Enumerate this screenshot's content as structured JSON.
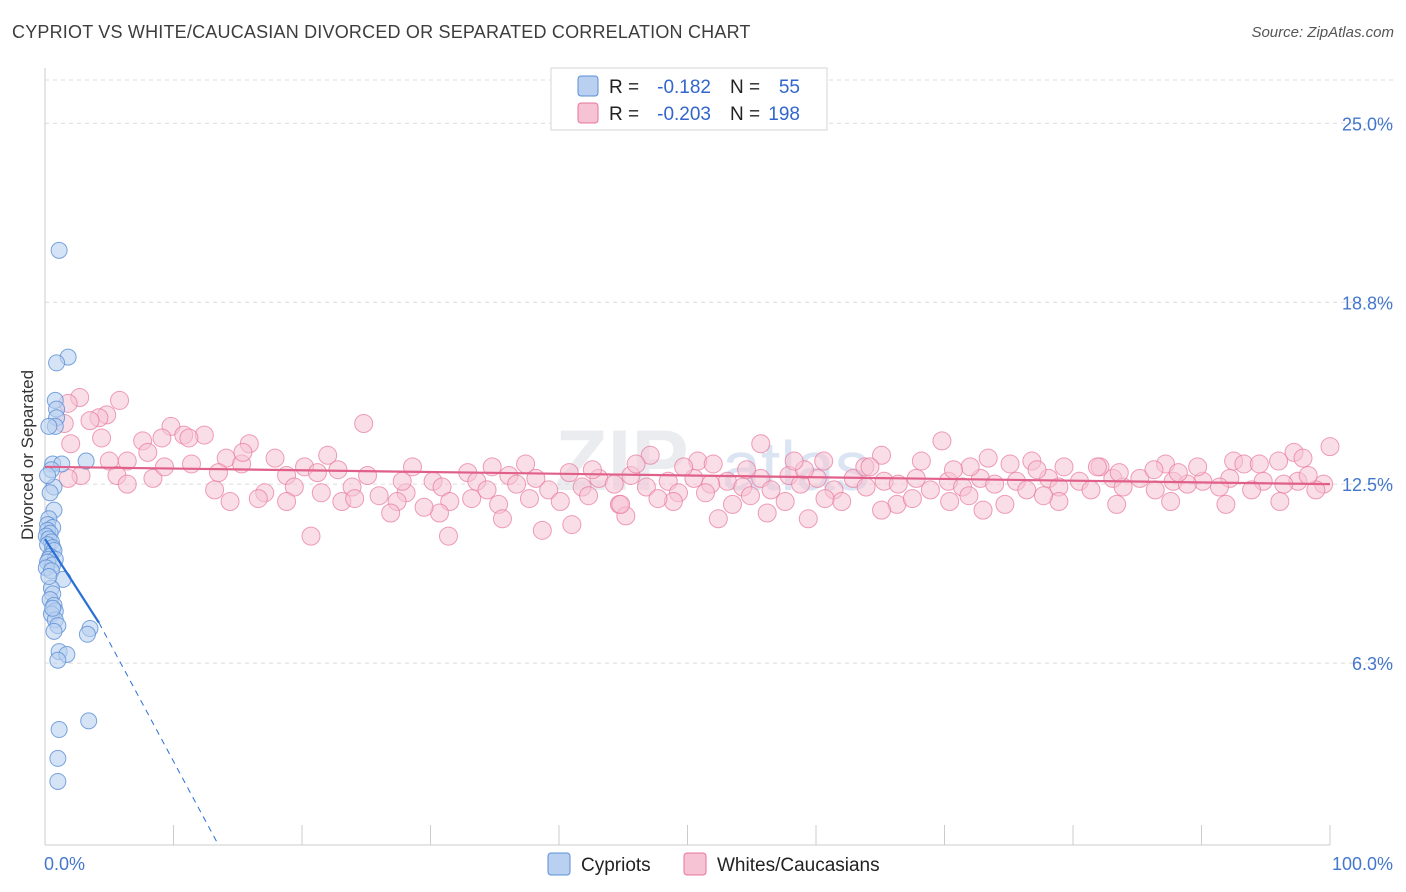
{
  "title": "CYPRIOT VS WHITE/CAUCASIAN DIVORCED OR SEPARATED CORRELATION CHART",
  "source": "Source: ZipAtlas.com",
  "watermark": {
    "zip": "ZIP",
    "atlas": "atlas"
  },
  "colors": {
    "cypriot": "#5b8fd6",
    "cypriot_fill": "#b9d0f0",
    "white": "#e8769a",
    "white_fill": "#f5c3d3",
    "axis_text": "#4477cc"
  },
  "legend_box": {
    "r_label": "R =",
    "n_label": "N =",
    "rows": [
      {
        "r": "-0.182",
        "n": "55"
      },
      {
        "r": "-0.203",
        "n": "198"
      }
    ]
  },
  "chart_data": {
    "type": "scatter",
    "title": "CYPRIOT VS WHITE/CAUCASIAN DIVORCED OR SEPARATED CORRELATION CHART",
    "xlabel": "",
    "ylabel": "Divorced or Separated",
    "xlim": [
      0,
      100
    ],
    "ylim": [
      0,
      26.5
    ],
    "x_tick_labels": [
      "0.0%",
      "100.0%"
    ],
    "y_ticks": [
      6.3,
      12.5,
      18.8,
      25.0
    ],
    "y_tick_labels": [
      "6.3%",
      "12.5%",
      "18.8%",
      "25.0%"
    ],
    "legend_position": "bottom-center",
    "series": [
      {
        "name": "Cypriots",
        "trend": {
          "x0": 0,
          "y0": 10.6,
          "x1": 4.2,
          "y1": 7.7,
          "dash_to_x": 13.5,
          "dash_to_y": 0
        },
        "points": [
          [
            1.1,
            20.6
          ],
          [
            1.8,
            16.9
          ],
          [
            0.9,
            16.7
          ],
          [
            0.8,
            15.4
          ],
          [
            0.9,
            15.1
          ],
          [
            0.9,
            14.8
          ],
          [
            0.8,
            14.5
          ],
          [
            0.3,
            14.5
          ],
          [
            3.2,
            13.3
          ],
          [
            0.6,
            13.2
          ],
          [
            1.3,
            13.2
          ],
          [
            0.5,
            13.0
          ],
          [
            0.7,
            12.4
          ],
          [
            0.7,
            11.6
          ],
          [
            0.3,
            11.3
          ],
          [
            0.2,
            11.1
          ],
          [
            0.6,
            11.0
          ],
          [
            0.2,
            10.9
          ],
          [
            0.4,
            10.8
          ],
          [
            0.1,
            10.7
          ],
          [
            0.3,
            10.6
          ],
          [
            0.5,
            10.5
          ],
          [
            0.2,
            10.4
          ],
          [
            0.6,
            10.3
          ],
          [
            0.7,
            10.2
          ],
          [
            0.4,
            10.0
          ],
          [
            0.3,
            9.9
          ],
          [
            0.8,
            9.9
          ],
          [
            0.2,
            9.8
          ],
          [
            0.6,
            9.7
          ],
          [
            0.1,
            9.6
          ],
          [
            0.5,
            9.5
          ],
          [
            1.4,
            9.2
          ],
          [
            0.5,
            8.9
          ],
          [
            0.6,
            8.7
          ],
          [
            0.4,
            8.5
          ],
          [
            0.7,
            8.3
          ],
          [
            0.8,
            8.1
          ],
          [
            0.5,
            8.0
          ],
          [
            0.8,
            7.8
          ],
          [
            1.0,
            7.6
          ],
          [
            3.5,
            7.5
          ],
          [
            0.7,
            7.4
          ],
          [
            3.3,
            7.3
          ],
          [
            1.1,
            6.7
          ],
          [
            1.7,
            6.6
          ],
          [
            1.0,
            6.4
          ],
          [
            3.4,
            4.3
          ],
          [
            1.1,
            4.0
          ],
          [
            1.0,
            3.0
          ],
          [
            1.0,
            2.2
          ],
          [
            0.2,
            12.8
          ],
          [
            0.4,
            12.2
          ],
          [
            0.3,
            9.3
          ],
          [
            0.6,
            8.2
          ]
        ]
      },
      {
        "name": "Whites/Caucasians",
        "trend": {
          "x0": 0,
          "y0": 13.1,
          "x1": 100,
          "y1": 12.5
        },
        "points": [
          [
            2.7,
            15.5
          ],
          [
            5.8,
            15.4
          ],
          [
            1.8,
            15.3
          ],
          [
            4.8,
            14.9
          ],
          [
            4.2,
            14.8
          ],
          [
            3.5,
            14.7
          ],
          [
            1.5,
            14.6
          ],
          [
            24.8,
            14.6
          ],
          [
            9.8,
            14.5
          ],
          [
            10.8,
            14.2
          ],
          [
            12.4,
            14.2
          ],
          [
            11.2,
            14.1
          ],
          [
            7.6,
            14.0
          ],
          [
            9.1,
            14.1
          ],
          [
            2.0,
            13.9
          ],
          [
            15.9,
            13.9
          ],
          [
            8.0,
            13.6
          ],
          [
            22.0,
            13.5
          ],
          [
            17.9,
            13.4
          ],
          [
            14.1,
            13.4
          ],
          [
            5.0,
            13.3
          ],
          [
            11.4,
            13.2
          ],
          [
            6.4,
            13.3
          ],
          [
            15.3,
            13.2
          ],
          [
            20.2,
            13.1
          ],
          [
            22.8,
            13.0
          ],
          [
            28.6,
            13.1
          ],
          [
            32.9,
            12.9
          ],
          [
            2.8,
            12.8
          ],
          [
            1.8,
            12.7
          ],
          [
            5.6,
            12.8
          ],
          [
            8.4,
            12.7
          ],
          [
            13.5,
            12.9
          ],
          [
            18.8,
            12.8
          ],
          [
            25.1,
            12.8
          ],
          [
            30.2,
            12.6
          ],
          [
            33.6,
            12.6
          ],
          [
            36.1,
            12.8
          ],
          [
            38.2,
            12.7
          ],
          [
            40.8,
            12.9
          ],
          [
            43.1,
            12.7
          ],
          [
            45.6,
            12.8
          ],
          [
            48.5,
            12.6
          ],
          [
            50.5,
            12.7
          ],
          [
            53.1,
            12.6
          ],
          [
            55.7,
            12.7
          ],
          [
            57.9,
            12.8
          ],
          [
            60.1,
            12.7
          ],
          [
            62.9,
            12.7
          ],
          [
            65.3,
            12.6
          ],
          [
            67.8,
            12.7
          ],
          [
            70.3,
            12.6
          ],
          [
            72.8,
            12.7
          ],
          [
            75.6,
            12.6
          ],
          [
            78.1,
            12.7
          ],
          [
            80.5,
            12.6
          ],
          [
            83.1,
            12.7
          ],
          [
            85.2,
            12.7
          ],
          [
            87.8,
            12.6
          ],
          [
            90.1,
            12.6
          ],
          [
            92.2,
            12.7
          ],
          [
            94.8,
            12.6
          ],
          [
            97.5,
            12.6
          ],
          [
            99.5,
            12.5
          ],
          [
            6.4,
            12.5
          ],
          [
            13.2,
            12.3
          ],
          [
            17.1,
            12.2
          ],
          [
            19.4,
            12.4
          ],
          [
            21.5,
            12.2
          ],
          [
            23.9,
            12.4
          ],
          [
            26.0,
            12.1
          ],
          [
            28.1,
            12.2
          ],
          [
            30.9,
            12.4
          ],
          [
            34.4,
            12.3
          ],
          [
            36.7,
            12.5
          ],
          [
            39.2,
            12.3
          ],
          [
            41.8,
            12.4
          ],
          [
            44.3,
            12.5
          ],
          [
            46.8,
            12.4
          ],
          [
            49.3,
            12.2
          ],
          [
            51.8,
            12.5
          ],
          [
            54.3,
            12.4
          ],
          [
            56.5,
            12.3
          ],
          [
            58.8,
            12.5
          ],
          [
            61.4,
            12.3
          ],
          [
            63.9,
            12.4
          ],
          [
            66.4,
            12.5
          ],
          [
            68.9,
            12.3
          ],
          [
            71.4,
            12.4
          ],
          [
            73.9,
            12.5
          ],
          [
            76.4,
            12.3
          ],
          [
            78.9,
            12.4
          ],
          [
            81.4,
            12.3
          ],
          [
            83.9,
            12.4
          ],
          [
            86.4,
            12.3
          ],
          [
            88.9,
            12.5
          ],
          [
            91.4,
            12.4
          ],
          [
            93.9,
            12.3
          ],
          [
            96.4,
            12.5
          ],
          [
            98.9,
            12.3
          ],
          [
            14.4,
            11.9
          ],
          [
            18.8,
            11.9
          ],
          [
            23.1,
            11.9
          ],
          [
            27.4,
            11.9
          ],
          [
            31.5,
            11.9
          ],
          [
            35.3,
            11.8
          ],
          [
            40.1,
            11.9
          ],
          [
            44.7,
            11.8
          ],
          [
            48.9,
            11.9
          ],
          [
            53.5,
            11.8
          ],
          [
            57.6,
            11.9
          ],
          [
            62.0,
            11.9
          ],
          [
            66.3,
            11.8
          ],
          [
            70.4,
            11.9
          ],
          [
            74.7,
            11.8
          ],
          [
            78.9,
            11.9
          ],
          [
            83.4,
            11.8
          ],
          [
            87.6,
            11.9
          ],
          [
            91.9,
            11.8
          ],
          [
            96.1,
            11.9
          ],
          [
            26.9,
            11.5
          ],
          [
            30.7,
            11.5
          ],
          [
            35.6,
            11.3
          ],
          [
            41.0,
            11.1
          ],
          [
            45.2,
            11.4
          ],
          [
            52.4,
            11.3
          ],
          [
            56.2,
            11.5
          ],
          [
            59.4,
            11.3
          ],
          [
            65.1,
            11.6
          ],
          [
            73.0,
            11.6
          ],
          [
            20.7,
            10.7
          ],
          [
            31.4,
            10.7
          ],
          [
            38.7,
            10.9
          ],
          [
            44.8,
            11.8
          ],
          [
            47.1,
            13.5
          ],
          [
            50.8,
            13.3
          ],
          [
            55.7,
            13.9
          ],
          [
            60.6,
            13.3
          ],
          [
            65.1,
            13.5
          ],
          [
            69.8,
            14.0
          ],
          [
            73.4,
            13.4
          ],
          [
            76.8,
            13.3
          ],
          [
            82.1,
            13.1
          ],
          [
            87.2,
            13.2
          ],
          [
            92.5,
            13.3
          ],
          [
            97.2,
            13.6
          ],
          [
            100.0,
            13.8
          ],
          [
            4.4,
            14.1
          ],
          [
            9.3,
            13.1
          ],
          [
            15.4,
            13.6
          ],
          [
            21.2,
            12.9
          ],
          [
            27.8,
            12.6
          ],
          [
            34.8,
            13.1
          ],
          [
            42.6,
            13.0
          ],
          [
            49.7,
            13.1
          ],
          [
            54.6,
            13.0
          ],
          [
            59.1,
            13.0
          ],
          [
            63.8,
            13.1
          ],
          [
            68.2,
            13.3
          ],
          [
            72.0,
            13.1
          ],
          [
            75.1,
            13.2
          ],
          [
            79.3,
            13.1
          ],
          [
            83.6,
            12.9
          ],
          [
            86.3,
            13.0
          ],
          [
            89.7,
            13.1
          ],
          [
            93.3,
            13.2
          ],
          [
            96.0,
            13.3
          ],
          [
            98.3,
            12.8
          ],
          [
            37.4,
            13.2
          ],
          [
            46.0,
            13.2
          ],
          [
            52.0,
            13.2
          ],
          [
            58.3,
            13.3
          ],
          [
            64.2,
            13.1
          ],
          [
            70.7,
            13.0
          ],
          [
            77.2,
            13.0
          ],
          [
            81.9,
            13.1
          ],
          [
            88.2,
            12.9
          ],
          [
            94.5,
            13.2
          ],
          [
            97.9,
            13.4
          ],
          [
            16.6,
            12.0
          ],
          [
            24.1,
            12.0
          ],
          [
            29.5,
            11.7
          ],
          [
            33.2,
            12.0
          ],
          [
            37.7,
            12.0
          ],
          [
            42.3,
            12.1
          ],
          [
            47.7,
            12.0
          ],
          [
            51.4,
            12.2
          ],
          [
            54.9,
            12.1
          ],
          [
            60.7,
            12.0
          ],
          [
            67.5,
            12.0
          ],
          [
            71.9,
            12.1
          ],
          [
            77.7,
            12.1
          ]
        ]
      }
    ]
  },
  "bottom_legend": [
    {
      "label": "Cypriots"
    },
    {
      "label": "Whites/Caucasians"
    }
  ]
}
